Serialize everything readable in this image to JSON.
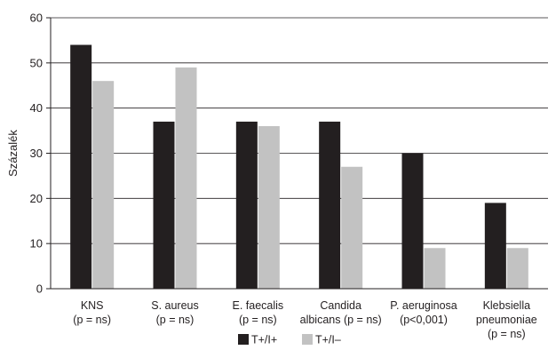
{
  "chart_data": {
    "type": "bar",
    "title": "",
    "xlabel": "",
    "ylabel": "Százalék",
    "ylim": [
      0,
      60
    ],
    "yticks": [
      0,
      10,
      20,
      30,
      40,
      50,
      60
    ],
    "grid": true,
    "legend_position": "bottom",
    "categories": [
      [
        "KNS",
        "(p = ns)"
      ],
      [
        "S. aureus",
        "(p = ns)"
      ],
      [
        "E. faecalis",
        "(p = ns)"
      ],
      [
        "Candida",
        "albicans (p = ns)"
      ],
      [
        "P. aeruginosa",
        "(p<0,001)"
      ],
      [
        "Klebsiella",
        "pneumoniae",
        "(p = ns)"
      ]
    ],
    "series": [
      {
        "name": "T+/I+",
        "color": "#231f20",
        "values": [
          54,
          37,
          37,
          37,
          30,
          19
        ]
      },
      {
        "name": "T+/I–",
        "color": "#c2c2c2",
        "values": [
          46,
          49,
          36,
          27,
          9,
          9
        ]
      }
    ]
  }
}
